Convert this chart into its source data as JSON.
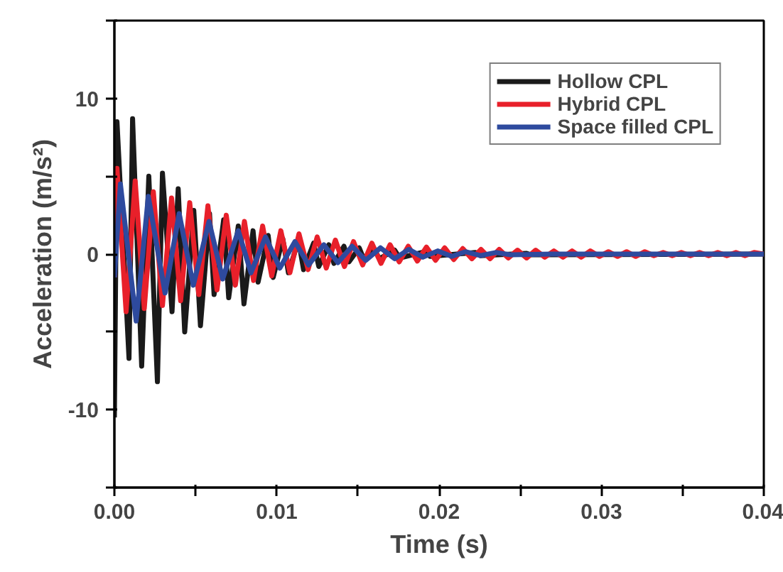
{
  "chart_data": {
    "type": "line",
    "xlabel": "Time (s)",
    "ylabel": "Acceleration (m/s²)",
    "xlim": [
      0,
      0.04
    ],
    "ylim": [
      -15,
      15
    ],
    "xticks": [
      {
        "value": 0,
        "label": "0.00"
      },
      {
        "value": 0.005,
        "label": null
      },
      {
        "value": 0.01,
        "label": "0.01"
      },
      {
        "value": 0.015,
        "label": null
      },
      {
        "value": 0.02,
        "label": "0.02"
      },
      {
        "value": 0.025,
        "label": null
      },
      {
        "value": 0.03,
        "label": "0.03"
      },
      {
        "value": 0.035,
        "label": null
      },
      {
        "value": 0.04,
        "label": "0.04"
      }
    ],
    "yticks": [
      {
        "value": -15,
        "label": null
      },
      -10,
      {
        "value": -5,
        "label": null
      },
      0,
      {
        "value": 5,
        "label": null
      },
      10,
      {
        "value": 15,
        "label": null
      }
    ],
    "grid": false,
    "legend": "top right",
    "marker": "none",
    "line_style": "solid",
    "series": [
      {
        "name": "Hollow CPL",
        "color": "#1a1a1a",
        "x": [
          0,
          0.00016,
          0.0009,
          0.00112,
          0.00168,
          0.00212,
          0.00265,
          0.00296,
          0.00355,
          0.00393,
          0.00433,
          0.00489,
          0.0053,
          0.00586,
          0.00614,
          0.00673,
          0.00704,
          0.00763,
          0.00798,
          0.00854,
          0.00885,
          0.00947,
          0.00978,
          0.01037,
          0.01072,
          0.01134,
          0.01165,
          0.01227,
          0.01259,
          0.01321,
          0.01352,
          0.01414,
          0.01445,
          0.01508,
          0.01539,
          0.01601,
          0.01632,
          0.01726,
          0.01757,
          0.01913,
          0.01944,
          0.02224,
          0.02255,
          0.02536,
          0.02567,
          0.04
        ],
        "values": [
          -10.5,
          8.5,
          -6.7,
          8.7,
          -7.2,
          5.0,
          -8.2,
          5.2,
          -3.7,
          4.2,
          -5.0,
          2.8,
          -4.6,
          2.6,
          -2.6,
          2.2,
          -2.8,
          1.8,
          -3.2,
          1.5,
          -1.8,
          1.2,
          -1.5,
          1.0,
          -1.2,
          0.9,
          -1.0,
          0.7,
          -0.8,
          0.6,
          -0.6,
          0.5,
          -0.5,
          0.4,
          -0.4,
          0.3,
          -0.3,
          0.25,
          -0.25,
          0.15,
          -0.15,
          0.1,
          -0.1,
          0.05,
          -0.05,
          0
        ]
      },
      {
        "name": "Hybrid CPL",
        "color": "#e8202a",
        "x": [
          0,
          0.00016,
          0.00072,
          0.00128,
          0.00184,
          0.0024,
          0.00296,
          0.00352,
          0.00408,
          0.00464,
          0.0052,
          0.00576,
          0.00632,
          0.00689,
          0.00745,
          0.00801,
          0.00857,
          0.00913,
          0.00969,
          0.01025,
          0.01081,
          0.01137,
          0.01193,
          0.01249,
          0.01305,
          0.01361,
          0.01417,
          0.01473,
          0.01529,
          0.01586,
          0.01642,
          0.01698,
          0.01754,
          0.0181,
          0.01866,
          0.01922,
          0.01978,
          0.02034,
          0.0209,
          0.02146,
          0.02202,
          0.02258,
          0.02314,
          0.0237,
          0.02426,
          0.02483,
          0.02539,
          0.02595,
          0.02651,
          0.02707,
          0.02763,
          0.02819,
          0.02875,
          0.02931,
          0.02987,
          0.03043,
          0.03099,
          0.03155,
          0.03211,
          0.03267,
          0.03323,
          0.0338,
          0.03436,
          0.03492,
          0.03548,
          0.03604,
          0.0366,
          0.03716,
          0.03772,
          0.03828,
          0.03884,
          0.0394,
          0.04
        ],
        "values": [
          -1.5,
          5.5,
          -3.7,
          4.7,
          -3.5,
          4.0,
          -3.3,
          3.6,
          -3.0,
          3.3,
          -2.6,
          3.1,
          -2.3,
          2.5,
          -2.0,
          2.1,
          -1.7,
          1.8,
          -1.4,
          1.5,
          -1.2,
          1.3,
          -1.0,
          1.1,
          -0.9,
          0.9,
          -0.8,
          0.8,
          -0.7,
          0.7,
          -0.6,
          0.6,
          -0.5,
          0.5,
          -0.45,
          0.45,
          -0.4,
          0.4,
          -0.35,
          0.35,
          -0.3,
          0.3,
          -0.3,
          0.3,
          -0.25,
          0.25,
          -0.25,
          0.25,
          -0.2,
          0.2,
          -0.2,
          0.2,
          -0.2,
          0.2,
          -0.15,
          0.15,
          -0.15,
          0.15,
          -0.15,
          0.15,
          -0.1,
          0.1,
          -0.1,
          0.1,
          -0.1,
          0.1,
          -0.1,
          0.1,
          -0.1,
          0.1,
          -0.1,
          0.1,
          0
        ]
      },
      {
        "name": "Space filled CPL",
        "color": "#2e4a9e",
        "x": [
          0,
          0.00037,
          0.00134,
          0.00209,
          0.00312,
          0.00399,
          0.00486,
          0.00583,
          0.00667,
          0.00763,
          0.00841,
          0.00931,
          0.01019,
          0.01112,
          0.01196,
          0.0129,
          0.01377,
          0.01464,
          0.01548,
          0.01639,
          0.01726,
          0.01813,
          0.019,
          0.01991,
          0.02078,
          0.02162,
          0.02255,
          0.02349,
          0.02442,
          0.02692,
          0.04
        ],
        "values": [
          -1.5,
          4.5,
          -4.3,
          3.7,
          -2.5,
          2.6,
          -2.0,
          2.1,
          -1.6,
          1.5,
          -1.2,
          1.1,
          -0.9,
          0.8,
          -0.7,
          0.6,
          -0.55,
          0.5,
          -0.4,
          0.4,
          -0.3,
          0.3,
          -0.2,
          0.2,
          -0.15,
          0.15,
          -0.1,
          0.1,
          -0.05,
          0,
          0
        ]
      }
    ]
  }
}
